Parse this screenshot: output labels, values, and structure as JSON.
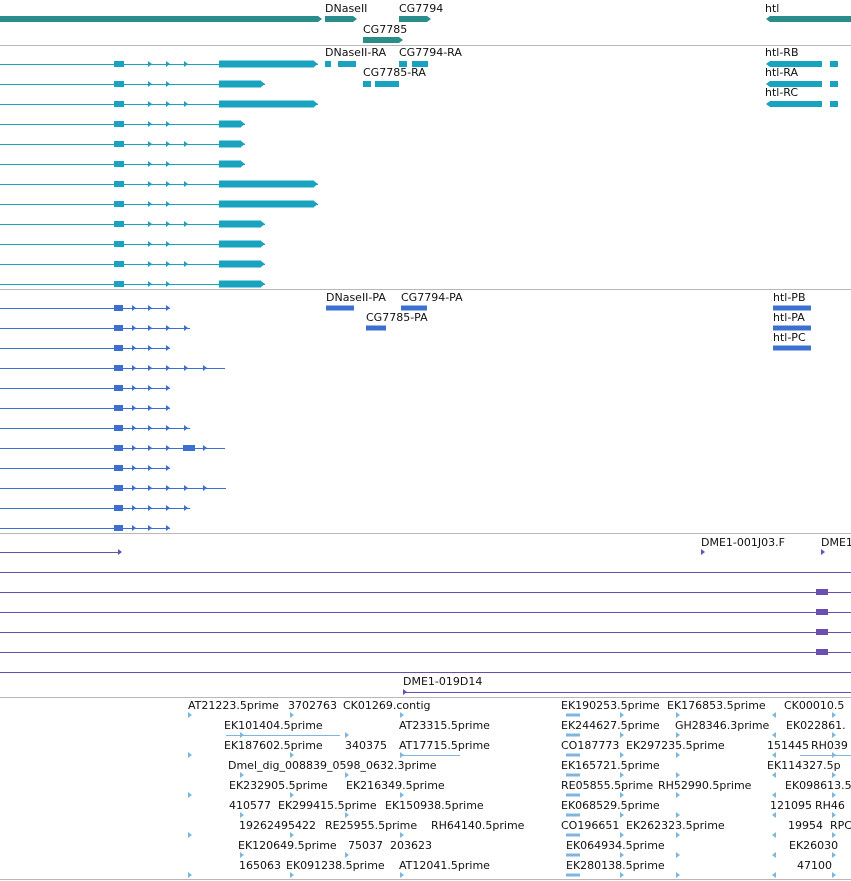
{
  "colors": {
    "gene": "#2b8c8c",
    "mrna": "#1aa3bf",
    "protein": "#3b6fd0",
    "clone": "#6a4fb0",
    "est": "#7fb6e0",
    "divider": "#b8b8b8"
  },
  "tracks": {
    "genes": {
      "labels": [
        "DNaseII",
        "CG7794",
        "CG7785",
        "htl"
      ]
    },
    "transcripts": {
      "labels": [
        "DNaseII-RA",
        "CG7794-RA",
        "CG7785-RA",
        "htl-RB",
        "htl-RA",
        "htl-RC"
      ]
    },
    "proteins": {
      "labels": [
        "DNaseII-PA",
        "CG7794-PA",
        "CG7785-PA",
        "htl-PB",
        "htl-PA",
        "htl-PC"
      ]
    },
    "clones": {
      "labels": [
        "DME1-001J03.F",
        "DME1",
        "DME1-019D14"
      ]
    },
    "ests": {
      "labels": [
        "AT21223.5prime",
        "3702763",
        "CK01269.contig",
        "EK101404.5prime",
        "AT23315.5prime",
        "EK187602.5prime",
        "340375",
        "AT17715.5prime",
        "Dmel_dig_008839_0598_0632.3prime",
        "EK232905.5prime",
        "EK216349.5prime",
        "410577",
        "EK299415.5prime",
        "EK150938.5prime",
        "19262495422",
        "RE25955.5prime",
        "RH64140.5prime",
        "EK120649.5prime",
        "75037",
        "203623",
        "165063",
        "EK091238.5prime",
        "AT12041.5prime",
        "EK190253.5prime",
        "EK176853.5prime",
        "CK00010.5",
        "EK244627.5prime",
        "GH28346.3prime",
        "EK022861.",
        "CO187773",
        "EK297235.5prime",
        "151445",
        "RH039",
        "EK165721.5prime",
        "EK114327.5p",
        "RE05855.5prime",
        "RH52990.5prime",
        "EK098613.5p",
        "EK068529.5prime",
        "121095",
        "RH46",
        "CO196651",
        "EK262323.5prime",
        "19954",
        "RPC",
        "EK064934.5prime",
        "EK26030",
        "EK280138.5prime",
        "47100"
      ]
    }
  }
}
